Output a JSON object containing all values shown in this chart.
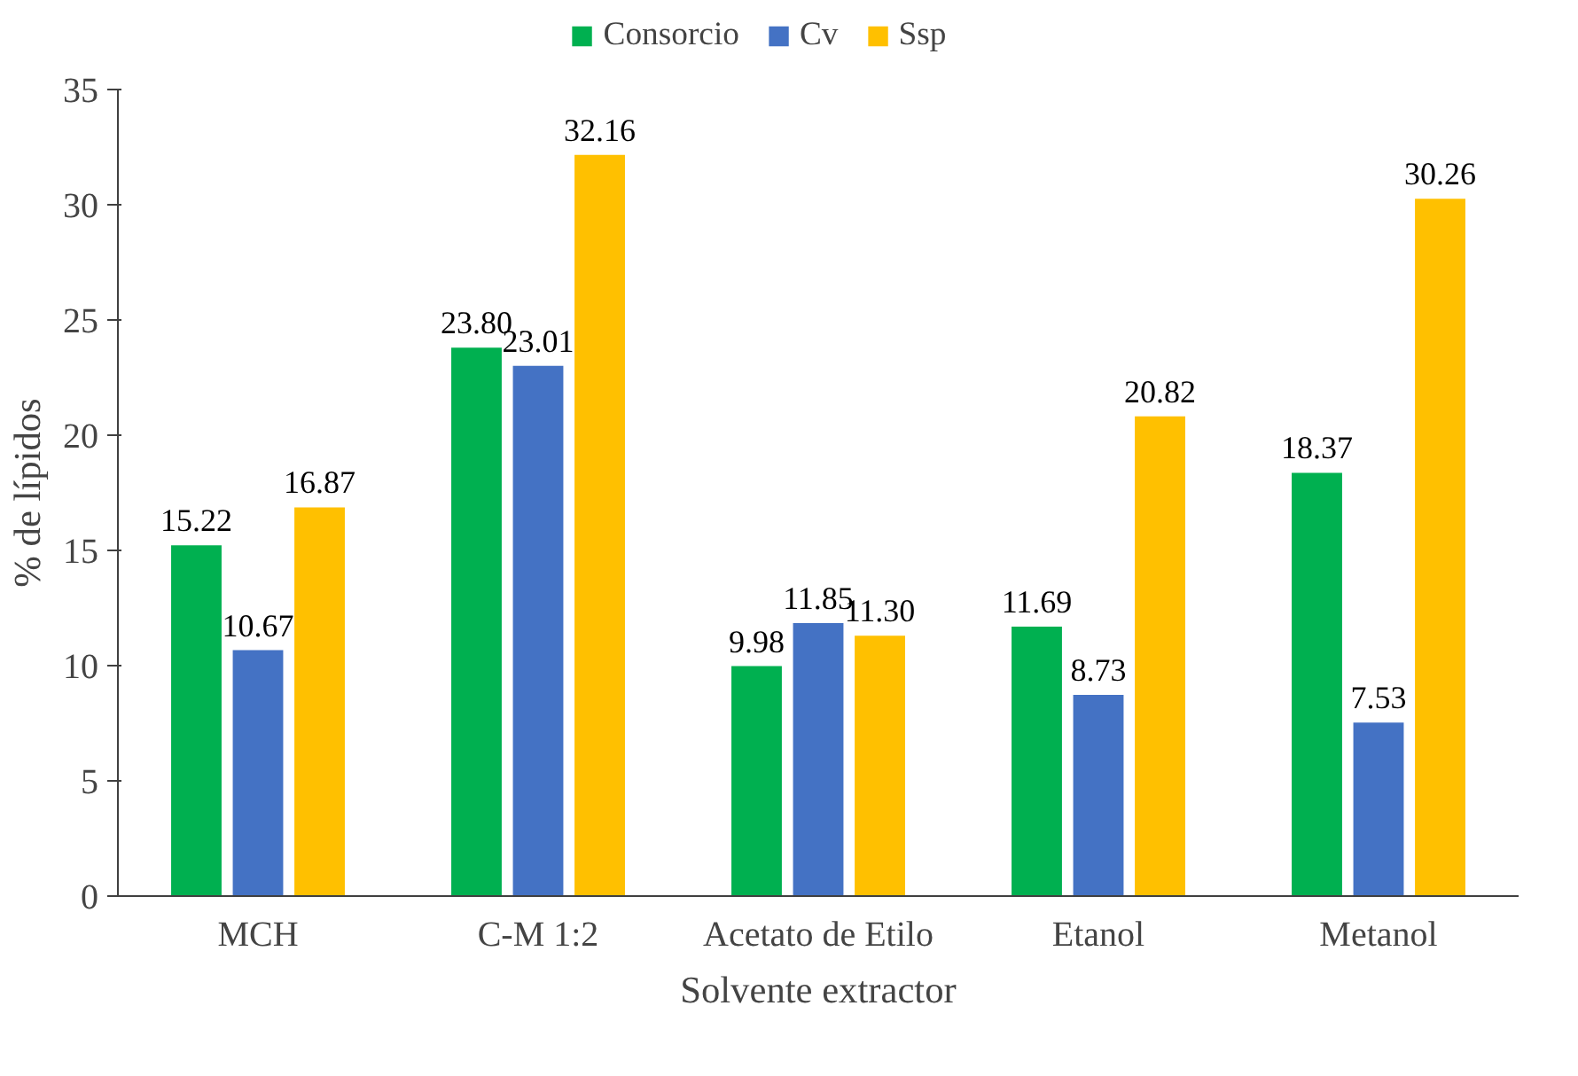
{
  "chart_data": {
    "type": "bar",
    "xlabel": "Solvente extractor",
    "ylabel": "% de lípidos",
    "categories": [
      "MCH",
      "C-M 1:2",
      "Acetato de Etilo",
      "Etanol",
      "Metanol"
    ],
    "series": [
      {
        "name": "Consorcio",
        "color": "#00b050",
        "values": [
          15.22,
          23.8,
          9.98,
          11.69,
          18.37
        ],
        "value_labels": [
          "15.22",
          "23.80",
          "9.98",
          "11.69",
          "18.37"
        ]
      },
      {
        "name": "Cv",
        "color": "#4472c4",
        "values": [
          10.67,
          23.01,
          11.85,
          8.73,
          7.53
        ],
        "value_labels": [
          "10.67",
          "23.01",
          "11.85",
          "8.73",
          "7.53"
        ]
      },
      {
        "name": "Ssp",
        "color": "#ffc000",
        "values": [
          16.87,
          32.16,
          11.3,
          20.82,
          30.26
        ],
        "value_labels": [
          "16.87",
          "32.16",
          "11.30",
          "20.82",
          "30.26"
        ]
      }
    ],
    "ylim": [
      0,
      35
    ],
    "yticks": [
      0,
      5,
      10,
      15,
      20,
      25,
      30,
      35
    ],
    "grid": false,
    "legend": "top"
  }
}
